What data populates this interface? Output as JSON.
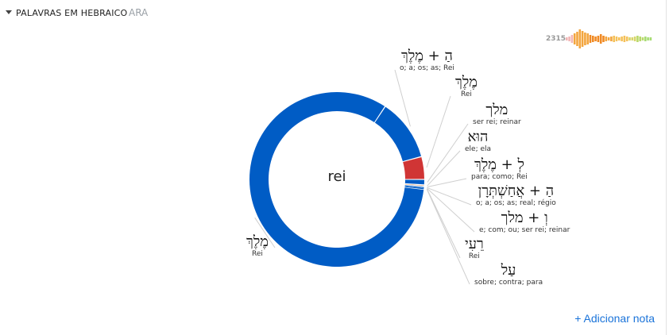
{
  "header": {
    "title": "PALAVRAS EM HEBRAICO",
    "version": "ARA"
  },
  "occurrence_count": "2315",
  "center_label": "rei",
  "add_note": "+ Adicionar nota",
  "colors": {
    "primary": "#005cc5",
    "secondary": "#d03535",
    "accent": "#e07b2c",
    "link": "#1a73d9"
  },
  "chart_data": {
    "type": "pie",
    "donut": true,
    "center_text": "rei",
    "slices": [
      {
        "label": "מֶלֶךְ",
        "gloss": "Rei",
        "value": 82.5,
        "color": "#005cc5"
      },
      {
        "label": "הַ + מֶלֶךְ",
        "gloss": "o; a; os; as; Rei",
        "value": 11.5,
        "color": "#005cc5"
      },
      {
        "label": "מֶלֶךְ",
        "gloss": "Rei",
        "value": 4.2,
        "color": "#d03535"
      },
      {
        "label": "מלך",
        "gloss": "ser rei; reinar",
        "value": 1.0,
        "color": "#005cc5"
      },
      {
        "label": "הוּא",
        "gloss": "ele; ela",
        "value": 0.25,
        "color": "#e07b2c"
      },
      {
        "label": "לְ + מֶלֶךְ",
        "gloss": "para; como; Rei",
        "value": 0.15,
        "color": "#005cc5"
      },
      {
        "label": "הַ + אֲחַשְׁתְּרָן",
        "gloss": "o; a; os; as; real; régio",
        "value": 0.12,
        "color": "#005cc5"
      },
      {
        "label": "וְ + מלך",
        "gloss": "e; com; ou; ser rei; reinar",
        "value": 0.1,
        "color": "#005cc5"
      },
      {
        "label": "רֵעִי",
        "gloss": "Rei",
        "value": 0.08,
        "color": "#005cc5"
      },
      {
        "label": "עַל",
        "gloss": "sobre; contra; para",
        "value": 0.1,
        "color": "#005cc5"
      }
    ]
  }
}
